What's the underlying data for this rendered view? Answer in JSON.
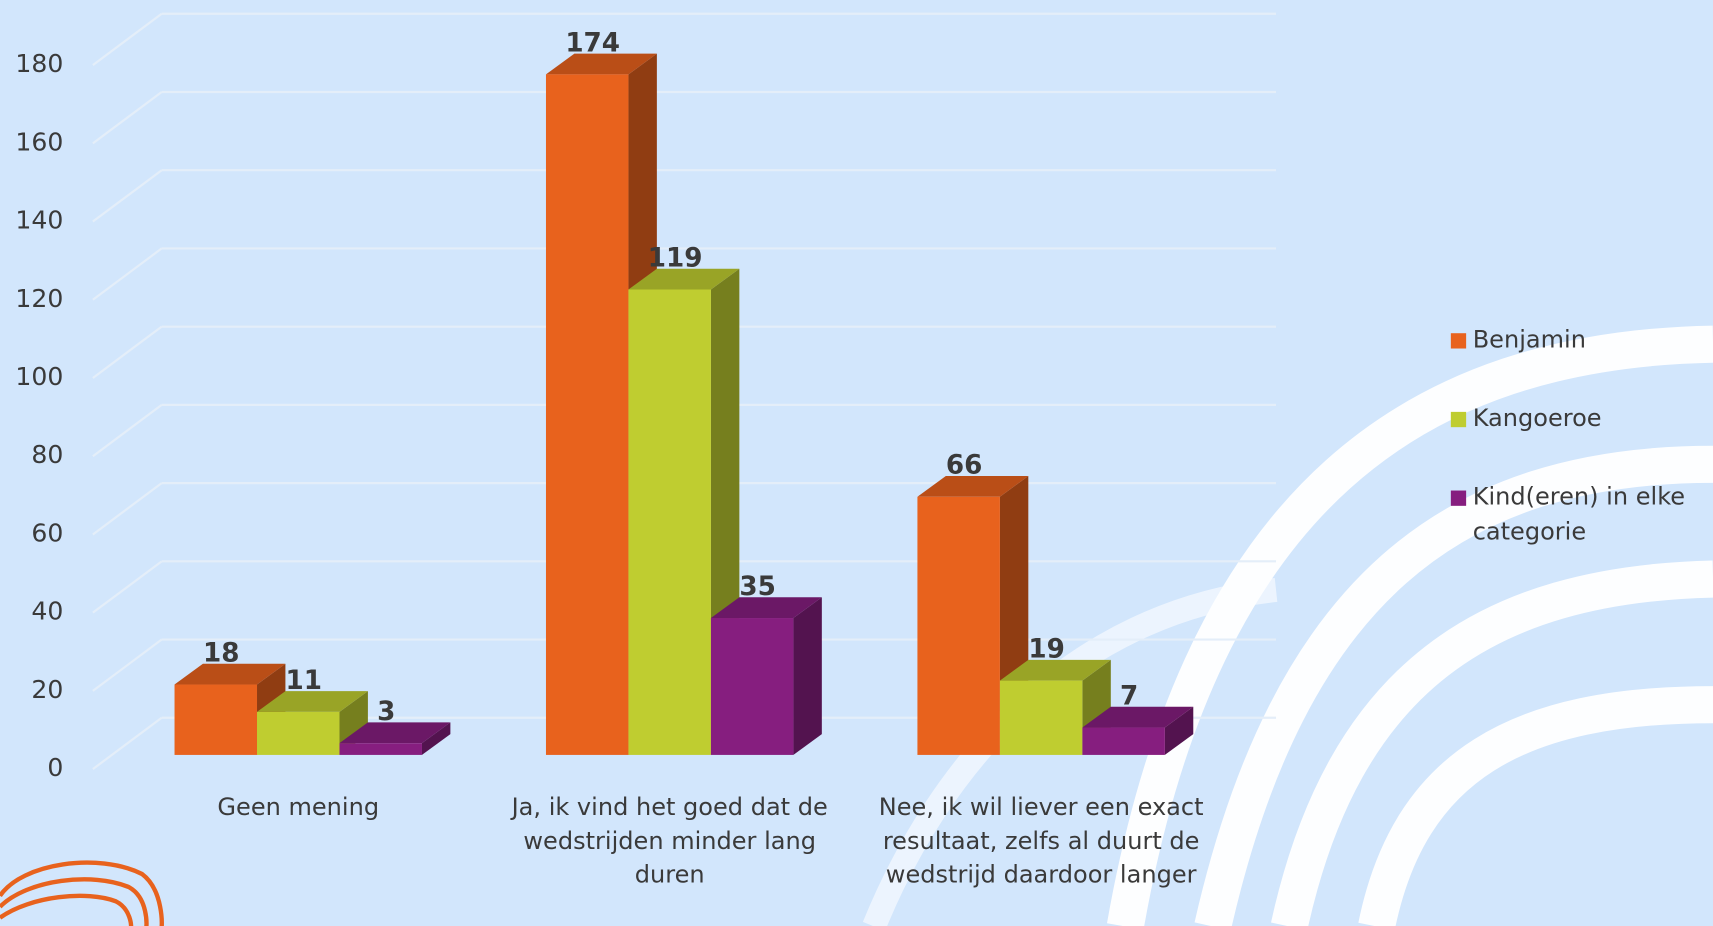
{
  "chart_data": {
    "type": "bar3d",
    "categories": [
      "Geen mening",
      "Ja, ik vind het goed dat de wedstrijden minder lang duren",
      "Nee, ik wil liever een exact resultaat, zelfs al duurt de wedstrijd daardoor langer"
    ],
    "series": [
      {
        "name": "Benjamin",
        "color": "#e8621d",
        "values": [
          18,
          174,
          66
        ]
      },
      {
        "name": "Kangoeroe",
        "color": "#bfcd30",
        "values": [
          11,
          119,
          19
        ]
      },
      {
        "name": "Kind(eren) in elke categorie",
        "color": "#861e7f",
        "values": [
          3,
          35,
          7
        ]
      }
    ],
    "ylim": [
      0,
      180
    ],
    "yticks": [
      0,
      20,
      40,
      60,
      80,
      100,
      120,
      140,
      160,
      180
    ],
    "grid": true,
    "legend": "right"
  }
}
